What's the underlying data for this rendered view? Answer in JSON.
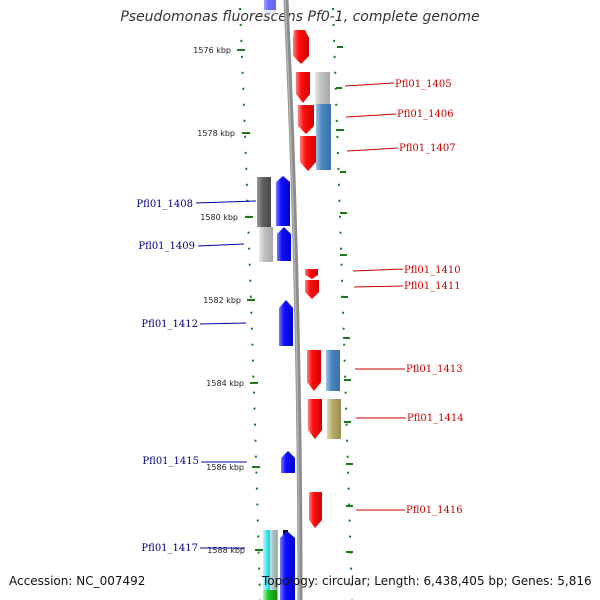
{
  "title": "Pseudomonas fluorescens Pf0-1, complete genome",
  "footer": {
    "accession": "Accession: NC_007492",
    "topology": "Topology: circular; Length: 6,438,405 bp; Genes: 5,816"
  },
  "colors": {
    "backbone": "#8c8c8c",
    "forward_label": "#00008b",
    "reverse_label": "#cc0000",
    "tick": "#1a7a1a"
  },
  "kbp_labels": [
    "1576 kbp",
    "1578 kbp",
    "1580 kbp",
    "1582 kbp",
    "1584 kbp",
    "1586 kbp",
    "1588 kbp"
  ],
  "genes_left": [
    {
      "id": "Pfl01_1408"
    },
    {
      "id": "Pfl01_1409"
    },
    {
      "id": "Pfl01_1412"
    },
    {
      "id": "Pfl01_1415"
    },
    {
      "id": "Pfl01_1417"
    }
  ],
  "genes_right": [
    {
      "id": "Pfl01_1405"
    },
    {
      "id": "Pfl01_1406"
    },
    {
      "id": "Pfl01_1407"
    },
    {
      "id": "Pfl01_1410"
    },
    {
      "id": "Pfl01_1411"
    },
    {
      "id": "Pfl01_1413"
    },
    {
      "id": "Pfl01_1414"
    },
    {
      "id": "Pfl01_1416"
    }
  ]
}
